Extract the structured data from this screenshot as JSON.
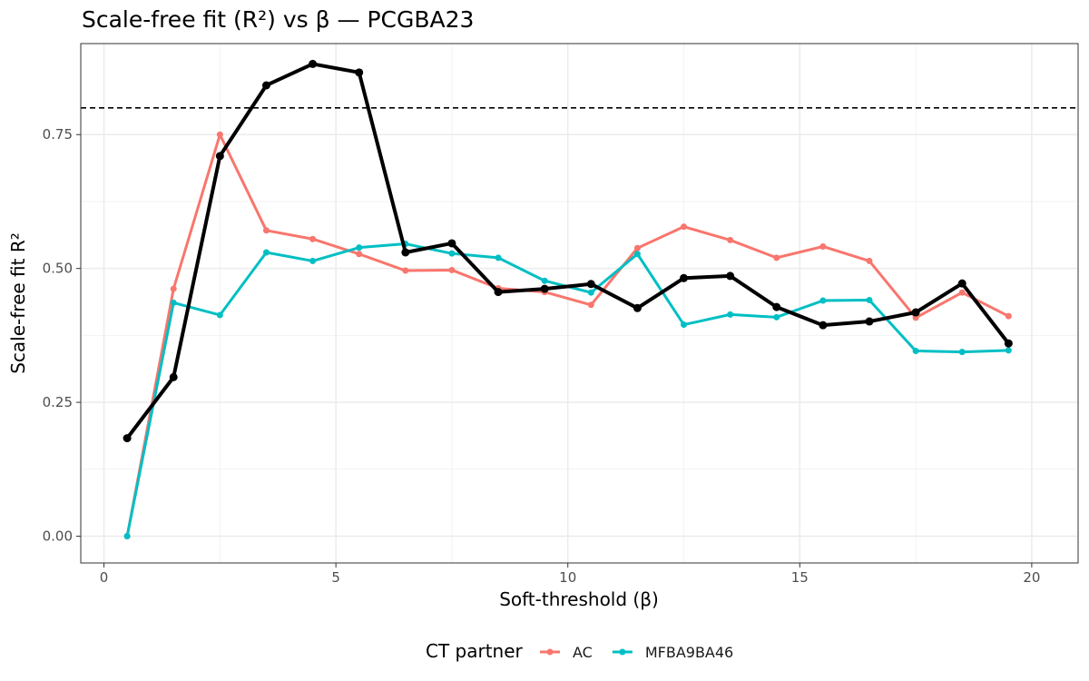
{
  "chart_data": {
    "type": "line",
    "title": "Scale-free fit (R²) vs β — PCGBA23",
    "xlabel": "Soft-threshold (β)",
    "ylabel": "Scale-free fit R²",
    "xlim": [
      -0.5,
      21
    ],
    "ylim": [
      -0.05,
      0.92
    ],
    "x_ticks": [
      {
        "value": 0,
        "label": "0"
      },
      {
        "value": 5,
        "label": "5"
      },
      {
        "value": 10,
        "label": "10"
      },
      {
        "value": 15,
        "label": "15"
      },
      {
        "value": 20,
        "label": "20"
      }
    ],
    "y_ticks": [
      {
        "value": 0,
        "label": "0.00"
      },
      {
        "value": 0.25,
        "label": "0.25"
      },
      {
        "value": 0.5,
        "label": "0.50"
      },
      {
        "value": 0.75,
        "label": "0.75"
      }
    ],
    "grid": true,
    "reference_line": {
      "y": 0.8,
      "style": "dashed",
      "color": "#000000"
    },
    "x": [
      0.5,
      1.5,
      2.5,
      3.5,
      4.5,
      5.5,
      6.5,
      7.5,
      8.5,
      9.5,
      10.5,
      11.5,
      12.5,
      13.5,
      14.5,
      15.5,
      16.5,
      17.5,
      18.5,
      19.5
    ],
    "series": [
      {
        "key": "overall",
        "color": "#000000",
        "values": [
          0.183,
          0.297,
          0.71,
          0.842,
          0.882,
          0.866,
          0.53,
          0.547,
          0.456,
          0.462,
          0.471,
          0.426,
          0.482,
          0.486,
          0.428,
          0.394,
          0.401,
          0.418,
          0.472,
          0.36
        ]
      },
      {
        "key": "ac",
        "name": "AC",
        "color": "#F8766D",
        "values": [
          0.0,
          0.462,
          0.75,
          0.571,
          0.555,
          0.527,
          0.496,
          0.497,
          0.463,
          0.456,
          0.432,
          0.538,
          0.578,
          0.553,
          0.52,
          0.541,
          0.514,
          0.408,
          0.455,
          0.411
        ]
      },
      {
        "key": "mfba",
        "name": "MFBA9BA46",
        "color": "#00BFC4",
        "values": [
          0.0,
          0.436,
          0.413,
          0.53,
          0.514,
          0.539,
          0.546,
          0.528,
          0.52,
          0.477,
          0.455,
          0.527,
          0.395,
          0.414,
          0.409,
          0.44,
          0.441,
          0.346,
          0.344,
          0.347
        ]
      }
    ],
    "legend": {
      "title": "CT partner",
      "placement": "bottom"
    }
  }
}
